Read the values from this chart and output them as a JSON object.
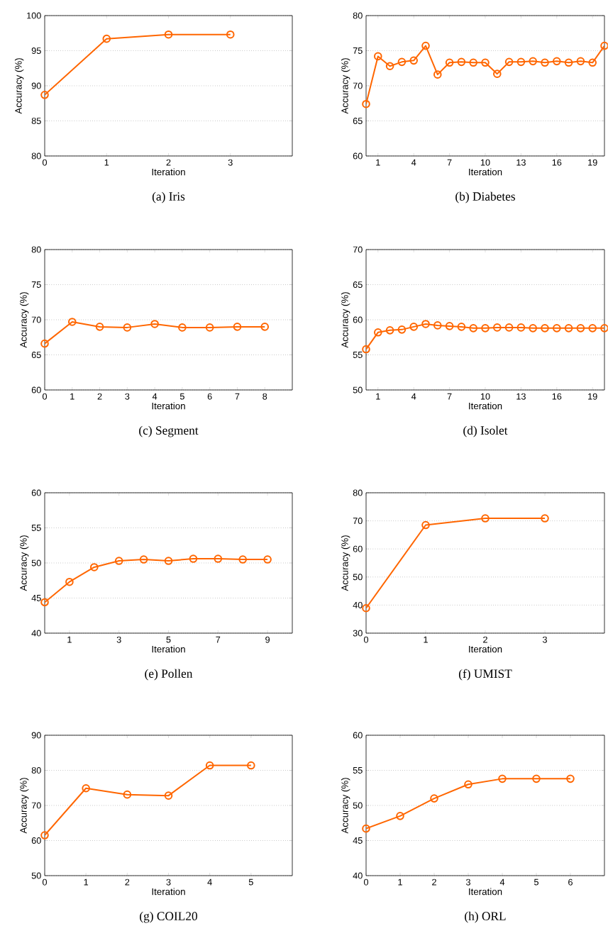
{
  "chart_data": [
    {
      "type": "line",
      "title": "(a)  Iris",
      "xlabel": "Iteration",
      "ylabel": "Accuracy (%)",
      "x": [
        0,
        1,
        2,
        3
      ],
      "xlim": [
        0,
        4
      ],
      "xticks": [
        0,
        1,
        2,
        3
      ],
      "ylim": [
        80,
        100
      ],
      "yticks": [
        80,
        85,
        90,
        95,
        100
      ],
      "grid": "y",
      "marker": "circle",
      "line_style": "solid",
      "series": [
        {
          "color": "#ff6600",
          "values": [
            88.7,
            96.7,
            97.3,
            97.3
          ]
        }
      ]
    },
    {
      "type": "line",
      "title": "(b)  Diabetes",
      "xlabel": "Iteration",
      "ylabel": "Accuracy (%)",
      "x": [
        0,
        1,
        2,
        3,
        4,
        5,
        6,
        7,
        8,
        9,
        10,
        11,
        12,
        13,
        14,
        15,
        16,
        17,
        18,
        19,
        20
      ],
      "xlim": [
        0,
        20
      ],
      "xticks": [
        1,
        4,
        7,
        10,
        13,
        16,
        19
      ],
      "ylim": [
        60,
        80
      ],
      "yticks": [
        60,
        65,
        70,
        75,
        80
      ],
      "grid": "y",
      "marker": "circle",
      "line_style": "solid",
      "series": [
        {
          "color": "#ff6600",
          "values": [
            67.4,
            74.2,
            72.8,
            73.4,
            73.6,
            75.7,
            71.6,
            73.3,
            73.4,
            73.3,
            73.3,
            71.7,
            73.4,
            73.4,
            73.5,
            73.3,
            73.5,
            73.3,
            73.5,
            73.3,
            75.7
          ]
        }
      ]
    },
    {
      "type": "line",
      "title": "(c)  Segment",
      "xlabel": "Iteration",
      "ylabel": "Accuracy (%)",
      "x": [
        0,
        1,
        2,
        3,
        4,
        5,
        6,
        7,
        8
      ],
      "xlim": [
        0,
        9
      ],
      "xticks": [
        0,
        1,
        2,
        3,
        4,
        5,
        6,
        7,
        8
      ],
      "ylim": [
        60,
        80
      ],
      "yticks": [
        60,
        65,
        70,
        75,
        80
      ],
      "grid": "y",
      "marker": "circle",
      "line_style": "solid",
      "series": [
        {
          "color": "#ff6600",
          "values": [
            66.6,
            69.7,
            69.0,
            68.9,
            69.4,
            68.9,
            68.9,
            69.0,
            69.0
          ]
        }
      ]
    },
    {
      "type": "line",
      "title": "(d)  Isolet",
      "xlabel": "Iteration",
      "ylabel": "Accuracy (%)",
      "x": [
        0,
        1,
        2,
        3,
        4,
        5,
        6,
        7,
        8,
        9,
        10,
        11,
        12,
        13,
        14,
        15,
        16,
        17,
        18,
        19,
        20
      ],
      "xlim": [
        0,
        20
      ],
      "xticks": [
        1,
        4,
        7,
        10,
        13,
        16,
        19
      ],
      "ylim": [
        50,
        70
      ],
      "yticks": [
        50,
        55,
        60,
        65,
        70
      ],
      "grid": "y",
      "marker": "circle",
      "line_style": "solid",
      "series": [
        {
          "color": "#ff6600",
          "values": [
            55.8,
            58.2,
            58.5,
            58.6,
            59.0,
            59.4,
            59.2,
            59.1,
            59.0,
            58.8,
            58.8,
            58.9,
            58.9,
            58.9,
            58.8,
            58.8,
            58.8,
            58.8,
            58.8,
            58.8,
            58.8
          ]
        }
      ]
    },
    {
      "type": "line",
      "title": "(e)  Pollen",
      "xlabel": "Iteration",
      "ylabel": "Accuracy (%)",
      "x": [
        0,
        1,
        2,
        3,
        4,
        5,
        6,
        7,
        8,
        9
      ],
      "xlim": [
        0,
        10
      ],
      "xticks": [
        1,
        3,
        5,
        7,
        9
      ],
      "ylim": [
        40,
        60
      ],
      "yticks": [
        40,
        45,
        50,
        55,
        60
      ],
      "grid": "y",
      "marker": "circle",
      "line_style": "solid",
      "series": [
        {
          "color": "#ff6600",
          "values": [
            44.4,
            47.3,
            49.4,
            50.3,
            50.5,
            50.3,
            50.6,
            50.6,
            50.5,
            50.5
          ]
        }
      ]
    },
    {
      "type": "line",
      "title": "(f)  UMIST",
      "xlabel": "Iteration",
      "ylabel": "Accuracy (%)",
      "x": [
        0,
        1,
        2,
        3
      ],
      "xlim": [
        0,
        4
      ],
      "xticks": [
        0,
        1,
        2,
        3
      ],
      "ylim": [
        30,
        80
      ],
      "yticks": [
        30,
        40,
        50,
        60,
        70,
        80
      ],
      "grid": "y",
      "marker": "circle",
      "line_style": "solid",
      "series": [
        {
          "color": "#ff6600",
          "values": [
            38.9,
            68.5,
            70.9,
            70.9
          ]
        }
      ]
    },
    {
      "type": "line",
      "title": "(g)  COIL20",
      "xlabel": "Iteration",
      "ylabel": "Accuracy (%)",
      "x": [
        0,
        1,
        2,
        3,
        4,
        5
      ],
      "xlim": [
        0,
        6
      ],
      "xticks": [
        0,
        1,
        2,
        3,
        4,
        5
      ],
      "ylim": [
        50,
        90
      ],
      "yticks": [
        50,
        60,
        70,
        80,
        90
      ],
      "grid": "y",
      "marker": "circle",
      "line_style": "solid",
      "series": [
        {
          "color": "#ff6600",
          "values": [
            61.5,
            74.9,
            73.1,
            72.8,
            81.4,
            81.4
          ]
        }
      ]
    },
    {
      "type": "line",
      "title": "(h)  ORL",
      "xlabel": "Iteration",
      "ylabel": "Accuracy (%)",
      "x": [
        0,
        1,
        2,
        3,
        4,
        5,
        6
      ],
      "xlim": [
        0,
        7
      ],
      "xticks": [
        0,
        1,
        2,
        3,
        4,
        5,
        6
      ],
      "ylim": [
        40,
        60
      ],
      "yticks": [
        40,
        45,
        50,
        55,
        60
      ],
      "grid": "y",
      "marker": "circle",
      "line_style": "solid",
      "series": [
        {
          "color": "#ff6600",
          "values": [
            46.7,
            48.5,
            51.0,
            53.0,
            53.8,
            53.8,
            53.8
          ]
        }
      ]
    }
  ]
}
